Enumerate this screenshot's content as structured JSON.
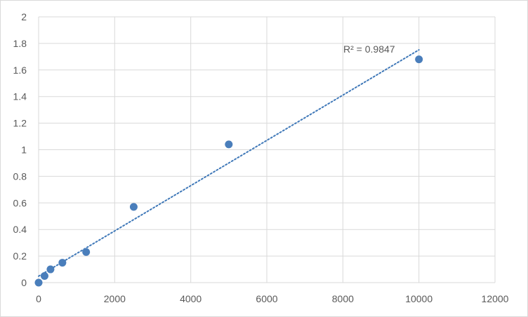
{
  "chart_data": {
    "type": "scatter",
    "x": [
      0,
      156.25,
      312.5,
      625,
      1250,
      2500,
      5000,
      10000
    ],
    "y": [
      0,
      0.05,
      0.1,
      0.15,
      0.23,
      0.57,
      1.04,
      1.68
    ],
    "xlim": [
      0,
      12000
    ],
    "ylim": [
      0,
      2
    ],
    "xticks": [
      0,
      2000,
      4000,
      6000,
      8000,
      10000,
      12000
    ],
    "yticks": [
      0,
      0.2,
      0.4,
      0.6,
      0.8,
      1,
      1.2,
      1.4,
      1.6,
      1.8,
      2
    ],
    "xtick_labels": [
      "0",
      "2000",
      "4000",
      "6000",
      "8000",
      "10000",
      "12000"
    ],
    "ytick_labels": [
      "0",
      "0.2",
      "0.4",
      "0.6",
      "0.8",
      "1",
      "1.2",
      "1.4",
      "1.6",
      "1.8",
      "2"
    ],
    "trendline": {
      "type": "linear",
      "style": "dotted",
      "x_range": [
        0,
        10000
      ],
      "intercept": 0.0485,
      "slope": 0.0001703
    },
    "annotation": "R² = 0.9847",
    "grid": true,
    "marker_color": "#4a7ebb",
    "trendline_color": "#3f78b8",
    "grid_color": "#d9d9d9"
  }
}
